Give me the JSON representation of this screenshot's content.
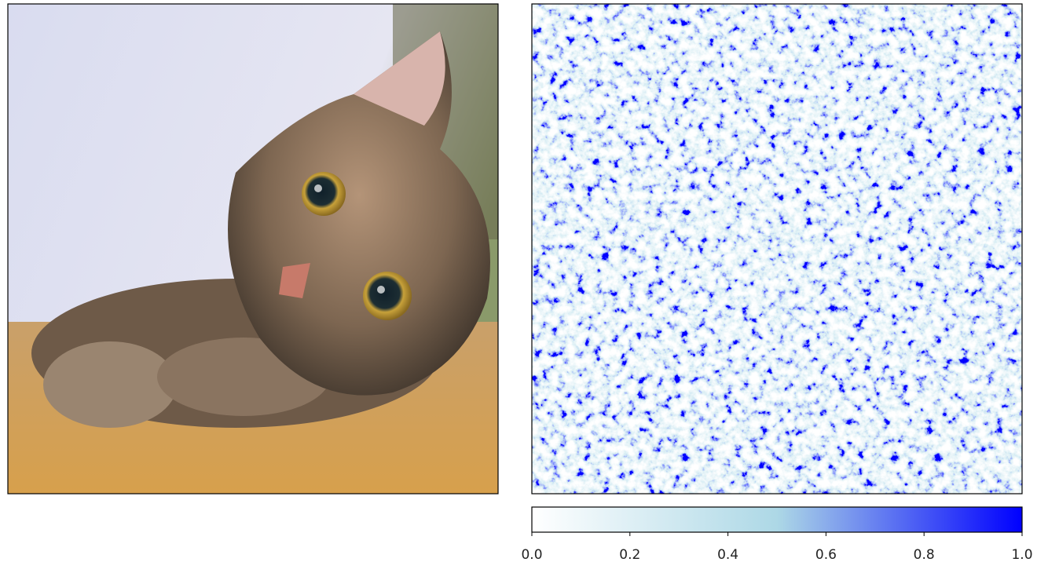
{
  "chart_data": {
    "type": "heatmap",
    "colormap": [
      "#ffffff",
      "#add8e6",
      "#0000ff"
    ],
    "colorbar": {
      "lim": [
        0,
        1
      ],
      "ticks": [
        {
          "value": 0,
          "label": "0.0"
        },
        {
          "value": 0.2,
          "label": "0.2"
        },
        {
          "value": 0.4,
          "label": "0.4"
        },
        {
          "value": 0.6,
          "label": "0.6"
        },
        {
          "value": 0.8,
          "label": "0.8"
        },
        {
          "value": 1,
          "label": "1.0"
        }
      ]
    }
  }
}
